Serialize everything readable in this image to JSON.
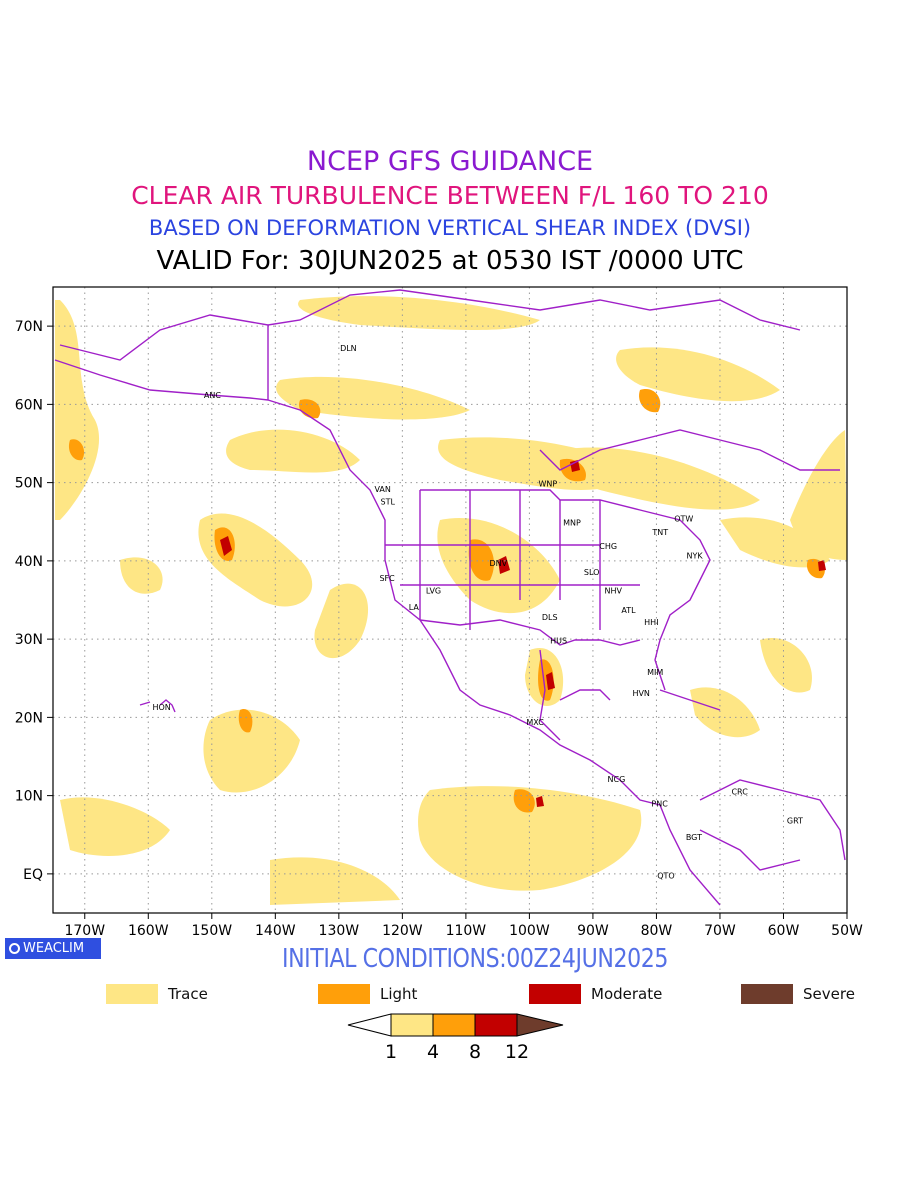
{
  "titles": {
    "line1": "NCEP GFS GUIDANCE",
    "line2": "CLEAR AIR TURBULENCE BETWEEN F/L 160 TO 210",
    "line3": "BASED ON DEFORMATION VERTICAL SHEAR INDEX (DVSI)",
    "line4": "VALID For: 30JUN2025 at 0530 IST /0000 UTC"
  },
  "colors": {
    "line1": "#8a19d0",
    "line2": "#e0157d",
    "line3": "#2b44e0",
    "line4": "#000000",
    "boundary": "#a020c8",
    "trace": "#fee685",
    "light": "#ff9f0a",
    "moderate": "#c20000",
    "severe": "#6e3c2c",
    "initial": "#5570e6"
  },
  "map": {
    "lon_range": [
      -175,
      -50
    ],
    "lat_range": [
      -5,
      75
    ],
    "lon_ticks": [
      {
        "v": -170,
        "label": "170W"
      },
      {
        "v": -160,
        "label": "160W"
      },
      {
        "v": -150,
        "label": "150W"
      },
      {
        "v": -140,
        "label": "140W"
      },
      {
        "v": -130,
        "label": "130W"
      },
      {
        "v": -120,
        "label": "120W"
      },
      {
        "v": -110,
        "label": "110W"
      },
      {
        "v": -100,
        "label": "100W"
      },
      {
        "v": -90,
        "label": "90W"
      },
      {
        "v": -80,
        "label": "80W"
      },
      {
        "v": -70,
        "label": "70W"
      },
      {
        "v": -60,
        "label": "60W"
      },
      {
        "v": -50,
        "label": "50W"
      }
    ],
    "lat_ticks": [
      {
        "v": 0,
        "label": "EQ"
      },
      {
        "v": 10,
        "label": "10N"
      },
      {
        "v": 20,
        "label": "20N"
      },
      {
        "v": 30,
        "label": "30N"
      },
      {
        "v": 40,
        "label": "40N"
      },
      {
        "v": 50,
        "label": "50N"
      },
      {
        "v": 60,
        "label": "60N"
      },
      {
        "v": 70,
        "label": "70N"
      }
    ],
    "stations": [
      {
        "code": "DLN",
        "lon": -128.5,
        "lat": 67.2
      },
      {
        "code": "ANC",
        "lon": -149.9,
        "lat": 61.2
      },
      {
        "code": "VAN",
        "lon": -123.1,
        "lat": 49.2
      },
      {
        "code": "STL",
        "lon": -122.3,
        "lat": 47.6
      },
      {
        "code": "WNP",
        "lon": -97.1,
        "lat": 49.9
      },
      {
        "code": "MNP",
        "lon": -93.3,
        "lat": 44.9
      },
      {
        "code": "TNT",
        "lon": -79.4,
        "lat": 43.7
      },
      {
        "code": "OTW",
        "lon": -75.7,
        "lat": 45.4
      },
      {
        "code": "CHG",
        "lon": -87.6,
        "lat": 41.9
      },
      {
        "code": "NYK",
        "lon": -74.0,
        "lat": 40.7
      },
      {
        "code": "DNV",
        "lon": -104.9,
        "lat": 39.7
      },
      {
        "code": "SFC",
        "lon": -122.4,
        "lat": 37.8
      },
      {
        "code": "SLO",
        "lon": -90.2,
        "lat": 38.6
      },
      {
        "code": "LVG",
        "lon": -115.1,
        "lat": 36.2
      },
      {
        "code": "NHV",
        "lon": -86.8,
        "lat": 36.2
      },
      {
        "code": "LA",
        "lon": -118.2,
        "lat": 34.1
      },
      {
        "code": "ATL",
        "lon": -84.4,
        "lat": 33.7
      },
      {
        "code": "DLS",
        "lon": -96.8,
        "lat": 32.8
      },
      {
        "code": "HHI",
        "lon": -80.8,
        "lat": 32.2
      },
      {
        "code": "HUS",
        "lon": -95.4,
        "lat": 29.8
      },
      {
        "code": "MIM",
        "lon": -80.2,
        "lat": 25.8
      },
      {
        "code": "HVN",
        "lon": -82.4,
        "lat": 23.1
      },
      {
        "code": "HON",
        "lon": -157.9,
        "lat": 21.3
      },
      {
        "code": "MXC",
        "lon": -99.1,
        "lat": 19.4
      },
      {
        "code": "NCG",
        "lon": -86.3,
        "lat": 12.1
      },
      {
        "code": "CRC",
        "lon": -66.9,
        "lat": 10.5
      },
      {
        "code": "PNC",
        "lon": -79.5,
        "lat": 9.0
      },
      {
        "code": "GRT",
        "lon": -58.2,
        "lat": 6.8
      },
      {
        "code": "BGT",
        "lon": -74.1,
        "lat": 4.7
      },
      {
        "code": "QTO",
        "lon": -78.5,
        "lat": -0.2
      }
    ]
  },
  "branding": {
    "logo_text": "WEACLIM"
  },
  "initial_conditions": "INITIAL CONDITIONS:00Z24JUN2025",
  "legend": [
    {
      "label": "Trace",
      "color": "#fee685"
    },
    {
      "label": "Light",
      "color": "#ff9f0a"
    },
    {
      "label": "Moderate",
      "color": "#c20000"
    },
    {
      "label": "Severe",
      "color": "#6e3c2c"
    }
  ],
  "colorbar": {
    "labels": [
      "1",
      "4",
      "8",
      "12"
    ]
  }
}
